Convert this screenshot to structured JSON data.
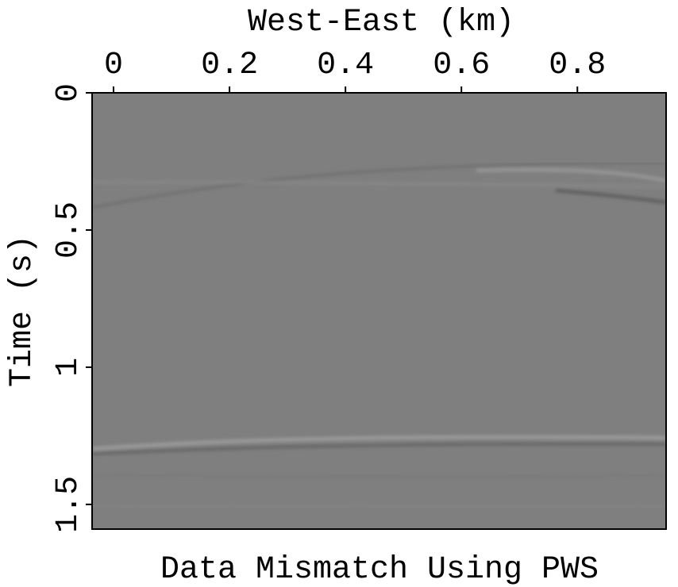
{
  "chart_data": {
    "type": "image",
    "title": "Data Mismatch Using PWS",
    "x_label": "West-East (km)",
    "y_label": "Time (s)",
    "xlim": [
      -0.037,
      0.953
    ],
    "xticks": [
      0,
      0.2,
      0.4,
      0.6,
      0.8
    ],
    "ylim": [
      0,
      1.59
    ],
    "yticks": [
      0,
      0.5,
      1,
      1.5
    ],
    "y_inverted": true,
    "x_axis_position": "top",
    "color": "#7f7f7f"
  }
}
